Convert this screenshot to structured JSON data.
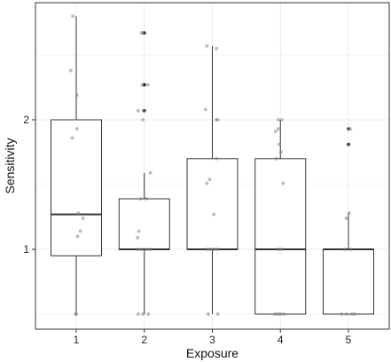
{
  "chart_data": {
    "type": "boxplot",
    "title": "",
    "xlabel": "Exposure",
    "ylabel": "Sensitivity",
    "categories": [
      "1",
      "2",
      "3",
      "4",
      "5"
    ],
    "y_ticks": [
      1,
      2
    ],
    "y_tick_labels": [
      "1",
      "2"
    ],
    "ylim": [
      0.37,
      2.9
    ],
    "grid": true,
    "legend": "none",
    "colors": {
      "box_fill": "#ffffff",
      "box_stroke": "#333333",
      "grid": "#ebebeb",
      "panel_border": "#333333",
      "point": "#808080",
      "outlier": "#222222"
    },
    "boxes": [
      {
        "category": "1",
        "whisker_low": 0.5,
        "q1": 0.95,
        "median": 1.27,
        "q3": 2.0,
        "whisker_high": 2.8,
        "outliers": []
      },
      {
        "category": "2",
        "whisker_low": 0.5,
        "q1": 1.0,
        "median": 1.0,
        "q3": 1.39,
        "whisker_high": 1.59,
        "outliers": [
          2.07,
          2.27,
          2.67
        ]
      },
      {
        "category": "3",
        "whisker_low": 0.5,
        "q1": 1.0,
        "median": 1.0,
        "q3": 1.7,
        "whisker_high": 2.57,
        "outliers": []
      },
      {
        "category": "4",
        "whisker_low": 0.5,
        "q1": 0.5,
        "median": 1.0,
        "q3": 1.7,
        "whisker_high": 2.0,
        "outliers": []
      },
      {
        "category": "5",
        "whisker_low": 0.5,
        "q1": 0.5,
        "median": 1.0,
        "q3": 1.0,
        "whisker_high": 1.28,
        "outliers": [
          1.81,
          1.93
        ]
      }
    ],
    "points": [
      {
        "category": "1",
        "y": 2.8,
        "jitter": -0.05
      },
      {
        "category": "1",
        "y": 2.38,
        "jitter": -0.08
      },
      {
        "category": "1",
        "y": 2.19,
        "jitter": 0.01
      },
      {
        "category": "1",
        "y": 1.93,
        "jitter": 0.01
      },
      {
        "category": "1",
        "y": 1.86,
        "jitter": -0.06
      },
      {
        "category": "1",
        "y": 1.28,
        "jitter": 0.03
      },
      {
        "category": "1",
        "y": 1.24,
        "jitter": 0.1
      },
      {
        "category": "1",
        "y": 1.14,
        "jitter": 0.06
      },
      {
        "category": "1",
        "y": 1.1,
        "jitter": 0.02
      },
      {
        "category": "1",
        "y": 0.5,
        "jitter": -0.01
      },
      {
        "category": "1",
        "y": 0.5,
        "jitter": 0.0
      },
      {
        "category": "2",
        "y": 2.67,
        "jitter": -0.04
      },
      {
        "category": "2",
        "y": 2.67,
        "jitter": -0.02
      },
      {
        "category": "2",
        "y": 2.27,
        "jitter": 0.05
      },
      {
        "category": "2",
        "y": 2.27,
        "jitter": -0.03
      },
      {
        "category": "2",
        "y": 2.07,
        "jitter": -0.09
      },
      {
        "category": "2",
        "y": 2.07,
        "jitter": -0.01
      },
      {
        "category": "2",
        "y": 2.0,
        "jitter": -0.02
      },
      {
        "category": "2",
        "y": 1.59,
        "jitter": 0.09
      },
      {
        "category": "2",
        "y": 1.39,
        "jitter": 0.03
      },
      {
        "category": "2",
        "y": 1.39,
        "jitter": -0.05
      },
      {
        "category": "2",
        "y": 1.14,
        "jitter": -0.08
      },
      {
        "category": "2",
        "y": 1.09,
        "jitter": -0.1
      },
      {
        "category": "2",
        "y": 1.0,
        "jitter": -0.09
      },
      {
        "category": "2",
        "y": 1.0,
        "jitter": -0.04
      },
      {
        "category": "2",
        "y": 1.0,
        "jitter": 0.03
      },
      {
        "category": "2",
        "y": 1.0,
        "jitter": 0.08
      },
      {
        "category": "2",
        "y": 0.5,
        "jitter": -0.09
      },
      {
        "category": "2",
        "y": 0.5,
        "jitter": -0.02
      },
      {
        "category": "2",
        "y": 0.5,
        "jitter": 0.06
      },
      {
        "category": "3",
        "y": 2.57,
        "jitter": -0.08
      },
      {
        "category": "3",
        "y": 2.55,
        "jitter": 0.06
      },
      {
        "category": "3",
        "y": 2.08,
        "jitter": -0.1
      },
      {
        "category": "3",
        "y": 2.0,
        "jitter": 0.06
      },
      {
        "category": "3",
        "y": 2.0,
        "jitter": 0.08
      },
      {
        "category": "3",
        "y": 1.7,
        "jitter": 0.06
      },
      {
        "category": "3",
        "y": 1.54,
        "jitter": -0.04
      },
      {
        "category": "3",
        "y": 1.51,
        "jitter": -0.08
      },
      {
        "category": "3",
        "y": 1.27,
        "jitter": 0.02
      },
      {
        "category": "3",
        "y": 1.0,
        "jitter": -0.07
      },
      {
        "category": "3",
        "y": 1.0,
        "jitter": -0.03
      },
      {
        "category": "3",
        "y": 1.0,
        "jitter": 0.01
      },
      {
        "category": "3",
        "y": 1.0,
        "jitter": 0.07
      },
      {
        "category": "3",
        "y": 0.5,
        "jitter": -0.06
      },
      {
        "category": "3",
        "y": 0.5,
        "jitter": 0.08
      },
      {
        "category": "4",
        "y": 2.0,
        "jitter": -0.03
      },
      {
        "category": "4",
        "y": 2.0,
        "jitter": 0.02
      },
      {
        "category": "4",
        "y": 1.93,
        "jitter": -0.03
      },
      {
        "category": "4",
        "y": 1.91,
        "jitter": -0.07
      },
      {
        "category": "4",
        "y": 1.81,
        "jitter": -0.02
      },
      {
        "category": "4",
        "y": 1.75,
        "jitter": 0.01
      },
      {
        "category": "4",
        "y": 1.7,
        "jitter": -0.06
      },
      {
        "category": "4",
        "y": 1.51,
        "jitter": 0.04
      },
      {
        "category": "4",
        "y": 1.0,
        "jitter": -0.02
      },
      {
        "category": "4",
        "y": 1.0,
        "jitter": 0.02
      },
      {
        "category": "4",
        "y": 0.5,
        "jitter": -0.08
      },
      {
        "category": "4",
        "y": 0.5,
        "jitter": -0.04
      },
      {
        "category": "4",
        "y": 0.5,
        "jitter": 0.0
      },
      {
        "category": "4",
        "y": 0.5,
        "jitter": 0.05
      },
      {
        "category": "5",
        "y": 1.93,
        "jitter": 0.03
      },
      {
        "category": "5",
        "y": 1.93,
        "jitter": 0.0
      },
      {
        "category": "5",
        "y": 1.81,
        "jitter": 0.01
      },
      {
        "category": "5",
        "y": 1.28,
        "jitter": 0.01
      },
      {
        "category": "5",
        "y": 1.24,
        "jitter": -0.03
      },
      {
        "category": "5",
        "y": 1.0,
        "jitter": -0.06
      },
      {
        "category": "5",
        "y": 1.0,
        "jitter": 0.03
      },
      {
        "category": "5",
        "y": 0.5,
        "jitter": -0.1
      },
      {
        "category": "5",
        "y": 0.5,
        "jitter": -0.03
      },
      {
        "category": "5",
        "y": 0.5,
        "jitter": 0.05
      },
      {
        "category": "5",
        "y": 0.5,
        "jitter": 0.09
      }
    ]
  }
}
